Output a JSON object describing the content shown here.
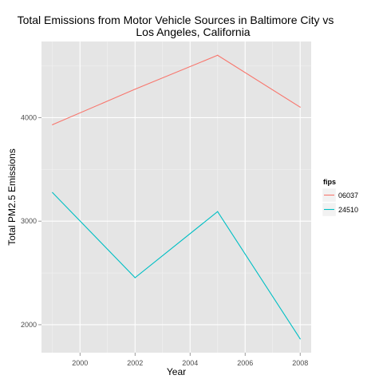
{
  "chart_data": {
    "type": "line",
    "title_line1": "Total Emissions from Motor Vehicle Sources in Baltimore City vs",
    "title_line2": "Los Angeles, California",
    "xlabel": "Year",
    "ylabel": "Total PM2.5 Emissions",
    "x": [
      1999,
      2002,
      2005,
      2008
    ],
    "xlim": [
      1998.6,
      2008.4
    ],
    "ylim": [
      1730,
      4735
    ],
    "x_ticks": [
      2000,
      2002,
      2004,
      2006,
      2008
    ],
    "y_ticks": [
      2000,
      3000,
      4000
    ],
    "x_tick_labels": [
      "2000",
      "2002",
      "2004",
      "2006",
      "2008"
    ],
    "y_tick_labels": [
      "2000",
      "3000",
      "4000"
    ],
    "grid": true,
    "legend": {
      "title": "fips",
      "position": "right"
    },
    "series": [
      {
        "name": "06037",
        "color": "#f8766d",
        "values": [
          3931,
          4274,
          4602,
          4101
        ]
      },
      {
        "name": "24510",
        "color": "#00bfc4",
        "values": [
          3276,
          2454,
          3092,
          1863
        ]
      }
    ]
  }
}
